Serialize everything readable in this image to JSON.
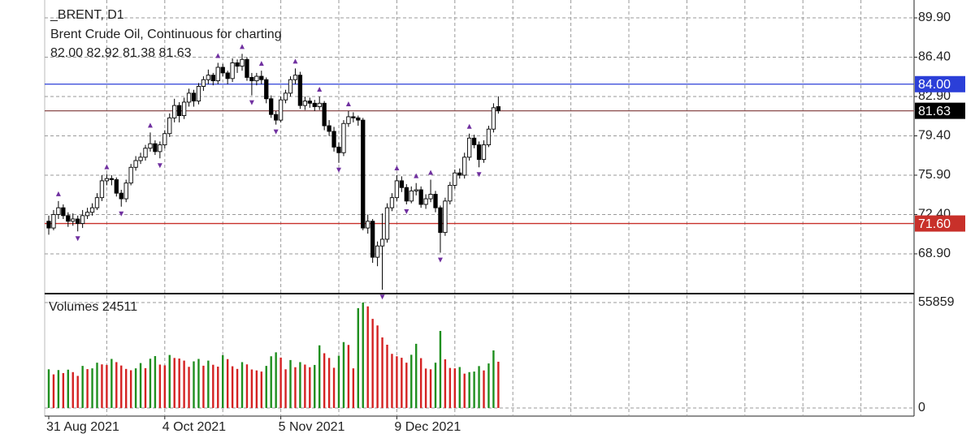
{
  "chart_data": {
    "type": "candlestick",
    "symbol": "_BRENT, D1",
    "description": "Brent Crude Oil, Continuous for charting",
    "ohlc_label": "82.00 82.92 81.38 81.63",
    "categories": [
      "31 Aug 2021",
      null,
      null,
      null,
      null,
      null,
      null,
      null,
      null,
      null,
      null,
      null,
      null,
      null,
      null,
      null,
      null,
      null,
      null,
      null,
      null,
      null,
      null,
      null,
      "4 Oct 2021",
      null,
      null,
      null,
      null,
      null,
      null,
      null,
      null,
      null,
      null,
      null,
      null,
      null,
      null,
      null,
      null,
      null,
      null,
      null,
      null,
      null,
      null,
      null,
      "5 Nov 2021",
      null,
      null,
      null,
      null,
      null,
      null,
      null,
      null,
      null,
      null,
      null,
      null,
      null,
      null,
      null,
      null,
      null,
      null,
      null,
      null,
      null,
      null,
      null,
      "9 Dec 2021",
      null,
      null,
      null,
      null,
      null,
      null,
      null,
      null,
      null,
      null,
      null,
      null,
      null,
      null,
      null,
      null,
      null,
      null,
      null,
      null,
      null
    ],
    "candles": [
      [
        71.8,
        72.3,
        70.6,
        71.2
      ],
      [
        71.2,
        72.8,
        71.0,
        72.4
      ],
      [
        72.4,
        73.6,
        72.0,
        73.0
      ],
      [
        73.0,
        73.3,
        72.0,
        72.3
      ],
      [
        72.3,
        72.6,
        71.3,
        71.8
      ],
      [
        71.8,
        72.5,
        71.4,
        72.0
      ],
      [
        72.0,
        72.3,
        70.9,
        71.6
      ],
      [
        71.6,
        72.8,
        71.2,
        72.3
      ],
      [
        72.3,
        73.0,
        72.0,
        72.6
      ],
      [
        72.6,
        73.4,
        72.3,
        73.0
      ],
      [
        73.0,
        74.3,
        72.8,
        73.9
      ],
      [
        73.9,
        75.9,
        73.6,
        75.4
      ],
      [
        75.4,
        76.0,
        75.0,
        75.6
      ],
      [
        75.6,
        75.9,
        75.0,
        75.5
      ],
      [
        75.5,
        75.7,
        74.0,
        74.3
      ],
      [
        74.3,
        74.6,
        73.1,
        73.8
      ],
      [
        73.8,
        75.5,
        73.5,
        75.2
      ],
      [
        75.2,
        76.9,
        75.0,
        76.6
      ],
      [
        76.6,
        77.6,
        76.3,
        77.2
      ],
      [
        77.2,
        77.9,
        76.9,
        77.5
      ],
      [
        77.5,
        78.6,
        77.2,
        78.3
      ],
      [
        78.3,
        79.7,
        78.0,
        78.7
      ],
      [
        78.7,
        79.0,
        77.7,
        78.0
      ],
      [
        78.0,
        78.9,
        77.4,
        78.6
      ],
      [
        78.6,
        79.9,
        78.3,
        79.6
      ],
      [
        79.6,
        81.4,
        79.3,
        81.0
      ],
      [
        81.0,
        82.7,
        80.6,
        82.1
      ],
      [
        82.1,
        82.4,
        80.6,
        81.2
      ],
      [
        81.2,
        82.8,
        80.9,
        82.4
      ],
      [
        82.4,
        83.6,
        82.0,
        83.2
      ],
      [
        83.2,
        83.5,
        82.0,
        82.5
      ],
      [
        82.5,
        84.1,
        82.2,
        83.8
      ],
      [
        83.8,
        84.7,
        83.4,
        84.4
      ],
      [
        84.4,
        85.3,
        84.0,
        84.8
      ],
      [
        84.8,
        85.0,
        83.9,
        84.3
      ],
      [
        84.3,
        85.9,
        84.0,
        85.5
      ],
      [
        85.5,
        85.8,
        84.7,
        85.0
      ],
      [
        85.0,
        85.2,
        84.0,
        84.5
      ],
      [
        84.5,
        86.3,
        84.2,
        85.9
      ],
      [
        85.9,
        86.2,
        85.0,
        85.6
      ],
      [
        85.6,
        86.7,
        85.2,
        86.2
      ],
      [
        86.2,
        86.4,
        84.3,
        84.6
      ],
      [
        84.6,
        85.0,
        83.0,
        84.3
      ],
      [
        84.3,
        85.0,
        83.9,
        84.7
      ],
      [
        84.7,
        85.2,
        84.0,
        84.4
      ],
      [
        84.4,
        84.6,
        82.3,
        82.7
      ],
      [
        82.7,
        83.0,
        81.0,
        81.3
      ],
      [
        81.3,
        81.6,
        80.4,
        80.8
      ],
      [
        80.8,
        82.9,
        80.6,
        82.6
      ],
      [
        82.6,
        83.5,
        82.3,
        83.2
      ],
      [
        83.2,
        84.7,
        82.9,
        84.4
      ],
      [
        84.4,
        85.4,
        84.0,
        84.8
      ],
      [
        84.8,
        85.1,
        81.8,
        82.1
      ],
      [
        82.1,
        82.9,
        81.7,
        82.5
      ],
      [
        82.5,
        82.8,
        81.9,
        82.3
      ],
      [
        82.3,
        82.6,
        81.6,
        82.0
      ],
      [
        82.0,
        82.9,
        81.7,
        82.3
      ],
      [
        82.3,
        82.5,
        79.9,
        80.3
      ],
      [
        80.3,
        80.8,
        79.4,
        79.8
      ],
      [
        79.8,
        80.2,
        78.0,
        78.4
      ],
      [
        78.4,
        78.8,
        77.0,
        77.9
      ],
      [
        77.9,
        80.8,
        77.6,
        80.5
      ],
      [
        80.5,
        81.6,
        80.2,
        81.1
      ],
      [
        81.1,
        81.5,
        80.6,
        81.0
      ],
      [
        81.0,
        81.2,
        80.3,
        80.8
      ],
      [
        80.8,
        81.0,
        71.0,
        71.2
      ],
      [
        71.2,
        72.4,
        70.7,
        71.8
      ],
      [
        71.8,
        72.0,
        68.1,
        68.6
      ],
      [
        68.6,
        70.0,
        67.8,
        69.6
      ],
      [
        69.6,
        72.5,
        65.7,
        70.2
      ],
      [
        70.2,
        73.4,
        69.9,
        73.0
      ],
      [
        73.0,
        74.3,
        72.7,
        73.9
      ],
      [
        73.9,
        75.9,
        73.6,
        75.4
      ],
      [
        75.4,
        75.8,
        74.4,
        74.8
      ],
      [
        74.8,
        75.1,
        73.3,
        73.6
      ],
      [
        73.6,
        74.9,
        73.4,
        74.5
      ],
      [
        74.5,
        75.2,
        74.1,
        74.6
      ],
      [
        74.6,
        74.9,
        73.0,
        73.3
      ],
      [
        73.3,
        74.2,
        72.9,
        73.8
      ],
      [
        73.8,
        75.5,
        73.5,
        74.2
      ],
      [
        74.2,
        74.5,
        72.6,
        73.0
      ],
      [
        73.0,
        73.2,
        69.0,
        70.8
      ],
      [
        70.8,
        73.9,
        70.5,
        73.6
      ],
      [
        73.6,
        75.3,
        73.3,
        75.0
      ],
      [
        75.0,
        76.4,
        74.7,
        76.1
      ],
      [
        76.1,
        76.5,
        75.6,
        75.9
      ],
      [
        75.9,
        77.9,
        75.6,
        77.5
      ],
      [
        77.5,
        79.6,
        77.2,
        79.2
      ],
      [
        79.2,
        79.5,
        78.3,
        78.6
      ],
      [
        78.6,
        78.9,
        76.6,
        77.3
      ],
      [
        77.3,
        79.0,
        77.0,
        78.6
      ],
      [
        78.6,
        80.3,
        78.4,
        80.0
      ],
      [
        80.0,
        82.3,
        79.7,
        81.9
      ],
      [
        82.0,
        82.92,
        81.38,
        81.63
      ]
    ],
    "ylim": [
      65.36,
      91.49
    ],
    "yticks": [
      {
        "value": 89.9,
        "label": "89.90"
      },
      {
        "value": 86.4,
        "label": "86.40"
      },
      {
        "value": 82.9,
        "label": "82.90"
      },
      {
        "value": 79.4,
        "label": "79.40"
      },
      {
        "value": 75.9,
        "label": "75.90"
      },
      {
        "value": 72.4,
        "label": "72.40"
      },
      {
        "value": 68.9,
        "label": "68.90"
      }
    ],
    "levels": [
      {
        "value": 84,
        "label": "84.00",
        "color": "#2b3fd8",
        "text_color": "#ffffff"
      },
      {
        "value": 81.63,
        "label": "81.63",
        "color": "#000000",
        "line_color": "#8a4a4a",
        "text_color": "#ffffff"
      },
      {
        "value": 71.6,
        "label": "71.60",
        "color": "#c8302a",
        "text_color": "#ffffff"
      }
    ],
    "fractal_color": "#7030a0",
    "volume": {
      "label": "Volumes 24511",
      "values": [
        20500,
        17800,
        20100,
        18500,
        20300,
        19000,
        17000,
        22300,
        20600,
        21000,
        24000,
        23100,
        22800,
        26000,
        24300,
        22500,
        20700,
        20000,
        21000,
        23800,
        21100,
        26100,
        27500,
        23000,
        22600,
        28100,
        26500,
        26200,
        25100,
        21800,
        24700,
        26000,
        22400,
        25100,
        22900,
        21900,
        28000,
        25900,
        22100,
        20700,
        24300,
        23100,
        20400,
        19900,
        19300,
        22300,
        27400,
        29500,
        26700,
        20500,
        25400,
        21600,
        24300,
        23000,
        21600,
        22800,
        33200,
        29000,
        26500,
        21300,
        27700,
        34900,
        33400,
        21000,
        52900,
        55859,
        53800,
        47200,
        43700,
        37400,
        33500,
        28700,
        27400,
        26600,
        24000,
        28200,
        34000,
        26400,
        20900,
        20500,
        24000,
        40800,
        25800,
        21200,
        21000,
        21700,
        18200,
        19000,
        19300,
        22200,
        19900,
        23600,
        30500,
        24511
      ],
      "ylim": [
        -4297,
        60585
      ],
      "yticks": [
        55859,
        0
      ],
      "up_color": "#1f8f1f",
      "down_color": "#d42222"
    }
  }
}
